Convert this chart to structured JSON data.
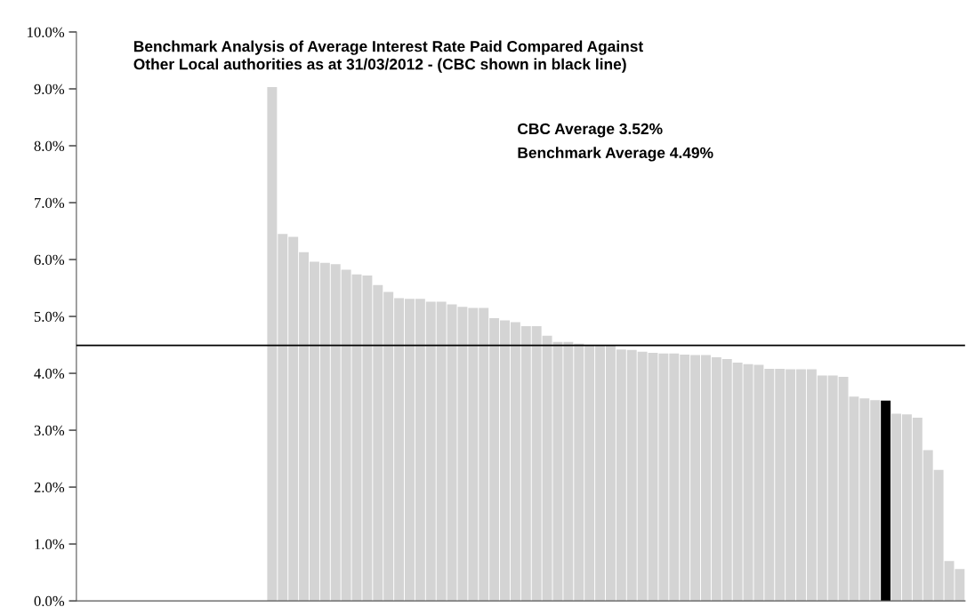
{
  "chart_data": {
    "type": "bar",
    "title": "Benchmark Analysis of Average Interest Rate Paid Compared Against\nOther Local authorities as at 31/03/2012 - (CBC shown in black line)",
    "annotations": [
      "CBC Average 3.52%",
      "Benchmark Average 4.49%"
    ],
    "categories": [
      null,
      null,
      null,
      null,
      null,
      null,
      null,
      null,
      null,
      null,
      null,
      null,
      null,
      null,
      null,
      null,
      null,
      null,
      null,
      null,
      null,
      null,
      null,
      null,
      null,
      null,
      null,
      null,
      null,
      null,
      null,
      null,
      null,
      null,
      null,
      null,
      null,
      null,
      null,
      null,
      null,
      null,
      null,
      null,
      null,
      null,
      null,
      null,
      null,
      null,
      null,
      null,
      null,
      null,
      null,
      null,
      null,
      null,
      null,
      null,
      null,
      null,
      null,
      null,
      null,
      null,
      null,
      null,
      null,
      null,
      null,
      null,
      null,
      null,
      null,
      null,
      null,
      null,
      null,
      null,
      null,
      null,
      null,
      null
    ],
    "values": [
      null,
      null,
      null,
      null,
      null,
      null,
      null,
      null,
      null,
      null,
      null,
      null,
      null,
      null,
      null,
      null,
      null,
      null,
      9.03,
      6.45,
      6.4,
      6.13,
      5.96,
      5.94,
      5.92,
      5.82,
      5.74,
      5.72,
      5.55,
      5.43,
      5.32,
      5.31,
      5.31,
      5.26,
      5.26,
      5.21,
      5.17,
      5.15,
      5.15,
      4.97,
      4.93,
      4.9,
      4.83,
      4.83,
      4.66,
      4.55,
      4.55,
      4.52,
      4.49,
      4.49,
      4.49,
      4.42,
      4.41,
      4.38,
      4.36,
      4.35,
      4.35,
      4.33,
      4.32,
      4.32,
      4.28,
      4.25,
      4.19,
      4.16,
      4.15,
      4.08,
      4.08,
      4.07,
      4.07,
      4.07,
      3.96,
      3.96,
      3.94,
      3.59,
      3.56,
      3.53,
      3.52,
      3.29,
      3.28,
      3.22,
      2.65,
      2.3,
      0.7,
      0.56
    ],
    "colors": [
      "#d4d4d4",
      "#d4d4d4",
      "#d4d4d4",
      "#d4d4d4",
      "#d4d4d4",
      "#d4d4d4",
      "#d4d4d4",
      "#d4d4d4",
      "#d4d4d4",
      "#d4d4d4",
      "#d4d4d4",
      "#d4d4d4",
      "#d4d4d4",
      "#d4d4d4",
      "#d4d4d4",
      "#d4d4d4",
      "#d4d4d4",
      "#d4d4d4",
      "#d4d4d4",
      "#d4d4d4",
      "#d4d4d4",
      "#d4d4d4",
      "#d4d4d4",
      "#d4d4d4",
      "#d4d4d4",
      "#d4d4d4",
      "#d4d4d4",
      "#d4d4d4",
      "#d4d4d4",
      "#d4d4d4",
      "#d4d4d4",
      "#d4d4d4",
      "#d4d4d4",
      "#d4d4d4",
      "#d4d4d4",
      "#d4d4d4",
      "#d4d4d4",
      "#d4d4d4",
      "#d4d4d4",
      "#d4d4d4",
      "#d4d4d4",
      "#d4d4d4",
      "#d4d4d4",
      "#d4d4d4",
      "#d4d4d4",
      "#d4d4d4",
      "#d4d4d4",
      "#d4d4d4",
      "#d4d4d4",
      "#d4d4d4",
      "#d4d4d4",
      "#d4d4d4",
      "#d4d4d4",
      "#d4d4d4",
      "#d4d4d4",
      "#d4d4d4",
      "#d4d4d4",
      "#d4d4d4",
      "#d4d4d4",
      "#d4d4d4",
      "#d4d4d4",
      "#d4d4d4",
      "#d4d4d4",
      "#d4d4d4",
      "#d4d4d4",
      "#d4d4d4",
      "#d4d4d4",
      "#d4d4d4",
      "#d4d4d4",
      "#d4d4d4",
      "#d4d4d4",
      "#d4d4d4",
      "#d4d4d4",
      "#d4d4d4",
      "#d4d4d4",
      "#d4d4d4",
      "#000000",
      "#d4d4d4",
      "#d4d4d4",
      "#d4d4d4",
      "#d4d4d4",
      "#d4d4d4",
      "#d4d4d4",
      "#d4d4d4"
    ],
    "ylim": [
      0,
      10
    ],
    "yticks": [
      {
        "value": 0,
        "label": "0.0%"
      },
      {
        "value": 1,
        "label": "1.0%"
      },
      {
        "value": 2,
        "label": "2.0%"
      },
      {
        "value": 3,
        "label": "3.0%"
      },
      {
        "value": 4,
        "label": "4.0%"
      },
      {
        "value": 5,
        "label": "5.0%"
      },
      {
        "value": 6,
        "label": "6.0%"
      },
      {
        "value": 7,
        "label": "7.0%"
      },
      {
        "value": 8,
        "label": "8.0%"
      },
      {
        "value": 9,
        "label": "9.0%"
      },
      {
        "value": 10,
        "label": "10.0%"
      }
    ],
    "ref_lines": [
      {
        "axis": "y",
        "value": 4.49,
        "color": "#000000"
      }
    ],
    "grid": false
  }
}
